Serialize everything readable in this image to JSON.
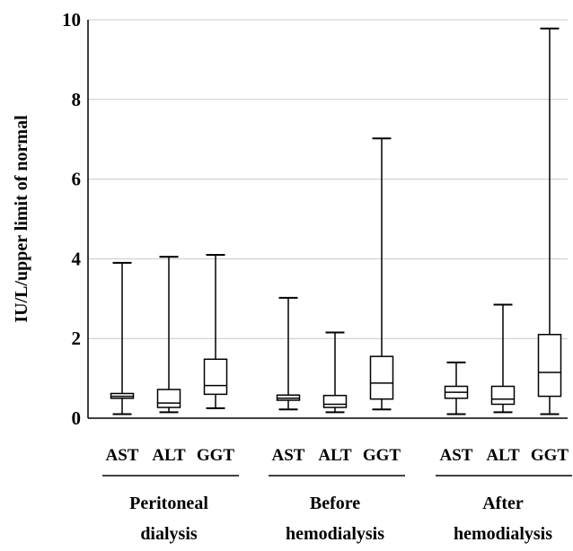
{
  "chart_data": {
    "type": "boxplot",
    "ylabel": "IU/L/upper limit of normal",
    "ylim": [
      0,
      10
    ],
    "y_ticks": [
      "0",
      "2",
      "4",
      "6",
      "8",
      "10"
    ],
    "grid": true,
    "groups": [
      {
        "label_lines": [
          "Peritoneal",
          "dialysis"
        ],
        "boxes": [
          {
            "category": "AST",
            "min": 0.1,
            "q1": 0.5,
            "median": 0.55,
            "q3": 0.62,
            "max": 3.9
          },
          {
            "category": "ALT",
            "min": 0.15,
            "q1": 0.27,
            "median": 0.38,
            "q3": 0.72,
            "max": 4.05
          },
          {
            "category": "GGT",
            "min": 0.25,
            "q1": 0.6,
            "median": 0.82,
            "q3": 1.48,
            "max": 4.1
          }
        ]
      },
      {
        "label_lines": [
          "Before",
          "hemodialysis"
        ],
        "boxes": [
          {
            "category": "AST",
            "min": 0.22,
            "q1": 0.45,
            "median": 0.5,
            "q3": 0.58,
            "max": 3.02
          },
          {
            "category": "ALT",
            "min": 0.15,
            "q1": 0.27,
            "median": 0.35,
            "q3": 0.57,
            "max": 2.15
          },
          {
            "category": "GGT",
            "min": 0.22,
            "q1": 0.48,
            "median": 0.88,
            "q3": 1.55,
            "max": 7.02
          }
        ]
      },
      {
        "label_lines": [
          "After",
          "hemodialysis"
        ],
        "boxes": [
          {
            "category": "AST",
            "min": 0.1,
            "q1": 0.5,
            "median": 0.65,
            "q3": 0.8,
            "max": 1.4
          },
          {
            "category": "ALT",
            "min": 0.15,
            "q1": 0.35,
            "median": 0.48,
            "q3": 0.8,
            "max": 2.85
          },
          {
            "category": "GGT",
            "min": 0.1,
            "q1": 0.55,
            "median": 1.15,
            "q3": 2.1,
            "max": 9.78
          }
        ]
      }
    ]
  }
}
